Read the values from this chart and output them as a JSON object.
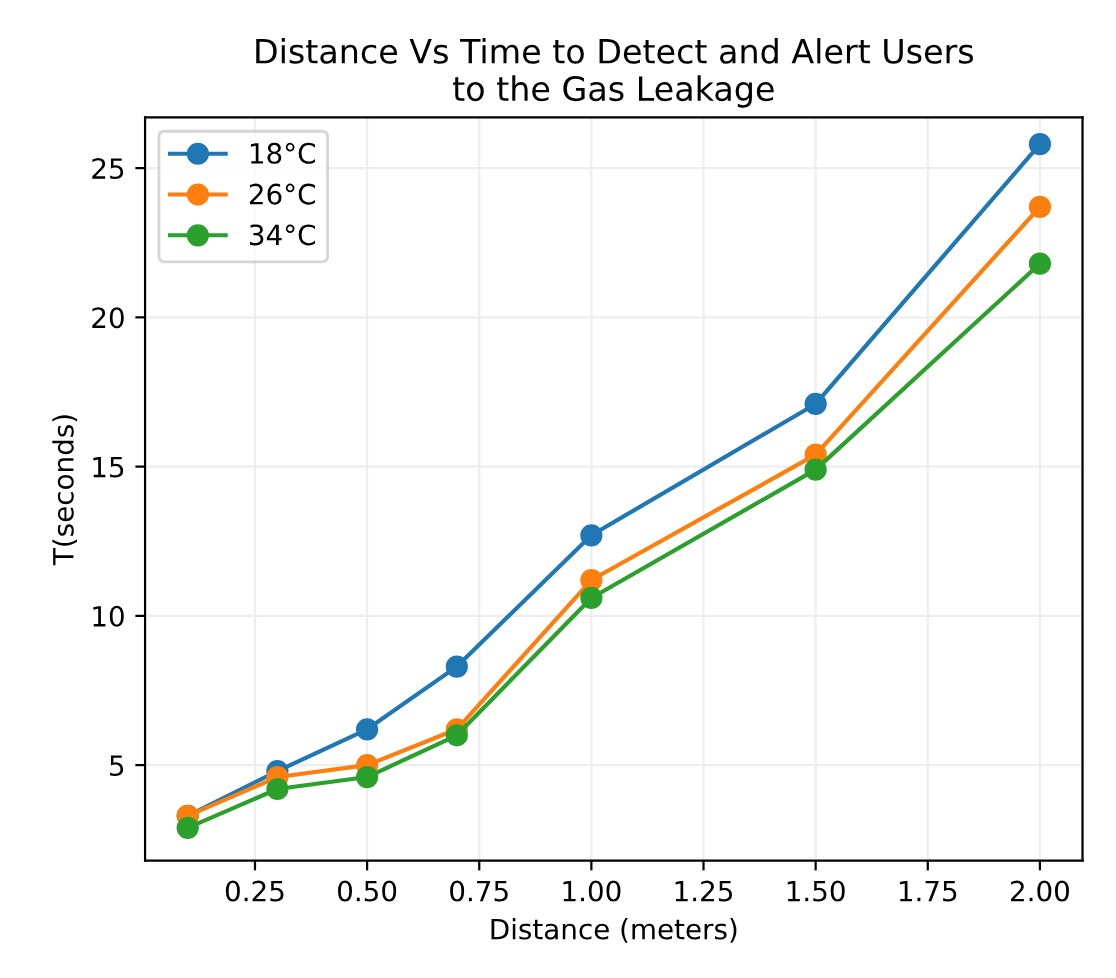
{
  "chart_data": {
    "type": "line",
    "title": "Distance Vs Time to Detect and Alert Users\nto the Gas Leakage",
    "xlabel": "Distance (meters)",
    "ylabel": "T(seconds)",
    "x": [
      0.1,
      0.3,
      0.5,
      0.7,
      1.0,
      1.5,
      2.0
    ],
    "series": [
      {
        "name": "18°C",
        "color": "#1f77b4",
        "values": [
          3.3,
          4.8,
          6.2,
          8.3,
          12.7,
          17.1,
          25.8
        ]
      },
      {
        "name": "26°C",
        "color": "#ff7f0e",
        "values": [
          3.3,
          4.6,
          5.0,
          6.2,
          11.2,
          15.4,
          23.7
        ]
      },
      {
        "name": "34°C",
        "color": "#2ca02c",
        "values": [
          2.9,
          4.2,
          4.6,
          6.0,
          10.6,
          14.9,
          21.8
        ]
      }
    ],
    "xlim": [
      0.005,
      2.095
    ],
    "ylim": [
      1.8,
      26.7
    ],
    "xticks": [
      0.25,
      {
        "value": 0.5,
        "label": "0.50"
      },
      0.75,
      {
        "value": 1.0,
        "label": "1.00"
      },
      1.25,
      {
        "value": 1.5,
        "label": "1.50"
      },
      1.75,
      {
        "value": 2.0,
        "label": "2.00"
      }
    ],
    "yticks": [
      5,
      10,
      15,
      20,
      25
    ],
    "grid": true,
    "legend": "top left",
    "marker": "circle",
    "line_style": "solid"
  }
}
